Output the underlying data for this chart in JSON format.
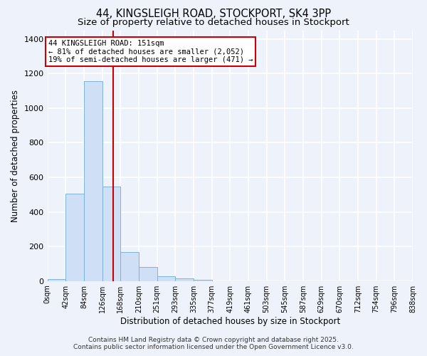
{
  "title": "44, KINGSLEIGH ROAD, STOCKPORT, SK4 3PP",
  "subtitle": "Size of property relative to detached houses in Stockport",
  "xlabel": "Distribution of detached houses by size in Stockport",
  "ylabel": "Number of detached properties",
  "bar_edges": [
    0,
    42,
    84,
    126,
    168,
    210,
    252,
    294,
    336,
    378,
    420,
    462,
    504,
    546,
    588,
    630,
    672,
    714,
    756,
    798,
    840
  ],
  "bar_heights": [
    10,
    505,
    1155,
    545,
    168,
    82,
    27,
    16,
    5,
    0,
    0,
    0,
    0,
    0,
    0,
    0,
    0,
    0,
    0,
    0
  ],
  "bar_color": "#cfdff5",
  "bar_edgecolor": "#7db3d8",
  "vline_x": 151,
  "vline_color": "#cc0000",
  "annotation_line1": "44 KINGSLEIGH ROAD: 151sqm",
  "annotation_line2": "← 81% of detached houses are smaller (2,052)",
  "annotation_line3": "19% of semi-detached houses are larger (471) →",
  "tick_labels": [
    "0sqm",
    "42sqm",
    "84sqm",
    "126sqm",
    "168sqm",
    "210sqm",
    "251sqm",
    "293sqm",
    "335sqm",
    "377sqm",
    "419sqm",
    "461sqm",
    "503sqm",
    "545sqm",
    "587sqm",
    "629sqm",
    "670sqm",
    "712sqm",
    "754sqm",
    "796sqm",
    "838sqm"
  ],
  "ylim": [
    0,
    1450
  ],
  "yticks": [
    0,
    200,
    400,
    600,
    800,
    1000,
    1200,
    1400
  ],
  "footer_line1": "Contains HM Land Registry data © Crown copyright and database right 2025.",
  "footer_line2": "Contains public sector information licensed under the Open Government Licence v3.0.",
  "background_color": "#eef2fb",
  "grid_color": "#ffffff",
  "title_fontsize": 10.5,
  "subtitle_fontsize": 9.5,
  "axis_label_fontsize": 8.5,
  "tick_fontsize": 7,
  "footer_fontsize": 6.5,
  "ann_fontsize": 7.5
}
